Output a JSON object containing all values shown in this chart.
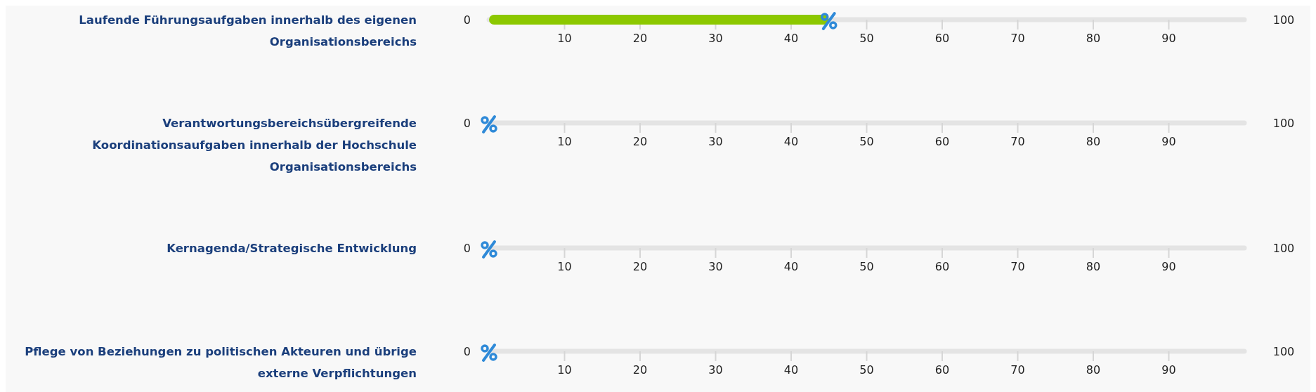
{
  "chart_data": [
    {
      "type": "bar",
      "orientation": "horizontal",
      "categories": [
        "Laufende Führungsaufgaben innerhalb des eigenen Organisationsbereichs"
      ],
      "values": [
        45
      ],
      "color": "#8cc800",
      "xlim": [
        0,
        100
      ],
      "xticks": [
        10,
        20,
        30,
        40,
        50,
        60,
        70,
        80,
        90
      ],
      "annotations": [
        "0",
        "100"
      ]
    },
    {
      "type": "bar",
      "orientation": "horizontal",
      "categories": [
        "Verantwortungsbereichsübergreifende Koordinationsaufgaben innerhalb der Hochschule Organisationsbereichs"
      ],
      "values": [
        0
      ],
      "xlim": [
        0,
        100
      ],
      "xticks": [
        10,
        20,
        30,
        40,
        50,
        60,
        70,
        80,
        90
      ],
      "annotations": [
        "0",
        "100"
      ]
    },
    {
      "type": "bar",
      "orientation": "horizontal",
      "categories": [
        "Kernagenda/Strategische Entwicklung"
      ],
      "values": [
        0
      ],
      "xlim": [
        0,
        100
      ],
      "xticks": [
        10,
        20,
        30,
        40,
        50,
        60,
        70,
        80,
        90
      ],
      "annotations": [
        "0",
        "100"
      ]
    },
    {
      "type": "bar",
      "orientation": "horizontal",
      "categories": [
        "Pflege von Beziehungen zu politischen Akteuren und übrige externe Verpflichtungen"
      ],
      "values": [
        0
      ],
      "xlim": [
        0,
        100
      ],
      "xticks": [
        10,
        20,
        30,
        40,
        50,
        60,
        70,
        80,
        90
      ],
      "annotations": [
        "0",
        "100"
      ]
    }
  ]
}
